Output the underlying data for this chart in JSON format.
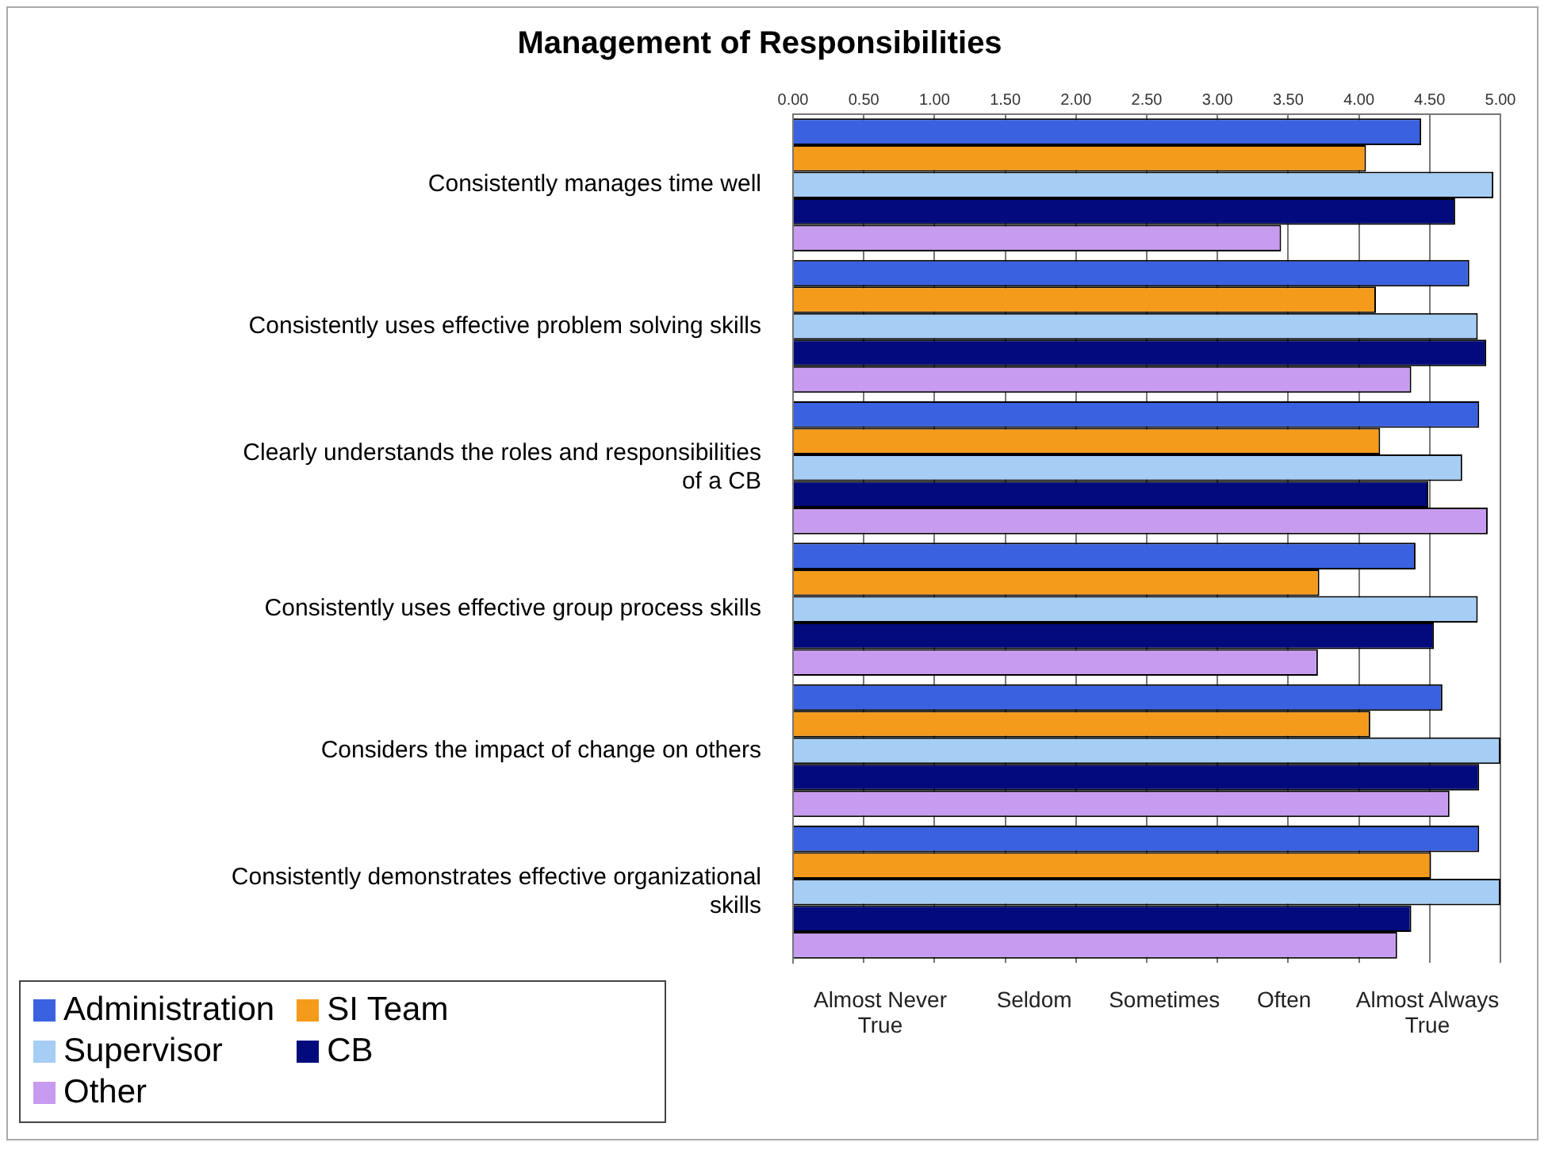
{
  "chart_data": {
    "type": "bar",
    "orientation": "horizontal",
    "title": "Management of Responsibilities",
    "categories": [
      "Consistently manages time well",
      "Consistently uses effective problem solving skills",
      "Clearly understands the roles and responsibilities of a CB",
      "Consistently uses effective group process skills",
      "Considers the impact of change on others",
      "Consistently demonstrates effective organizational skills"
    ],
    "series": [
      {
        "name": "Administration",
        "color": "#3a62e0",
        "values": [
          4.44,
          4.78,
          4.85,
          4.4,
          4.59,
          4.85
        ]
      },
      {
        "name": "SI Team",
        "color": "#f49b1c",
        "values": [
          4.05,
          4.12,
          4.15,
          3.72,
          4.08,
          4.51
        ]
      },
      {
        "name": "Supervisor",
        "color": "#a6cdf4",
        "values": [
          4.95,
          4.84,
          4.73,
          4.84,
          5.0,
          5.0
        ]
      },
      {
        "name": "CB",
        "color": "#020a7c",
        "values": [
          4.68,
          4.9,
          4.49,
          4.53,
          4.85,
          4.37
        ]
      },
      {
        "name": "Other",
        "color": "#c79cf0",
        "values": [
          3.45,
          4.37,
          4.91,
          3.71,
          4.64,
          4.27
        ]
      }
    ],
    "xlim": [
      0,
      5
    ],
    "xticks": [
      {
        "value": 0,
        "label": "0.00"
      },
      {
        "value": 0.5,
        "label": "0.50"
      },
      {
        "value": 1,
        "label": "1.00"
      },
      {
        "value": 1.5,
        "label": "1.50"
      },
      {
        "value": 2,
        "label": "2.00"
      },
      {
        "value": 2.5,
        "label": "2.50"
      },
      {
        "value": 3,
        "label": "3.00"
      },
      {
        "value": 3.5,
        "label": "3.50"
      },
      {
        "value": 4,
        "label": "4.00"
      },
      {
        "value": 4.5,
        "label": "4.50"
      },
      {
        "value": 5,
        "label": "5.00"
      }
    ],
    "grid": "x",
    "legend": "bottom left",
    "annotations": [
      "Almost Never True",
      "Seldom",
      "Sometimes",
      "Often",
      "Almost Always True"
    ]
  }
}
